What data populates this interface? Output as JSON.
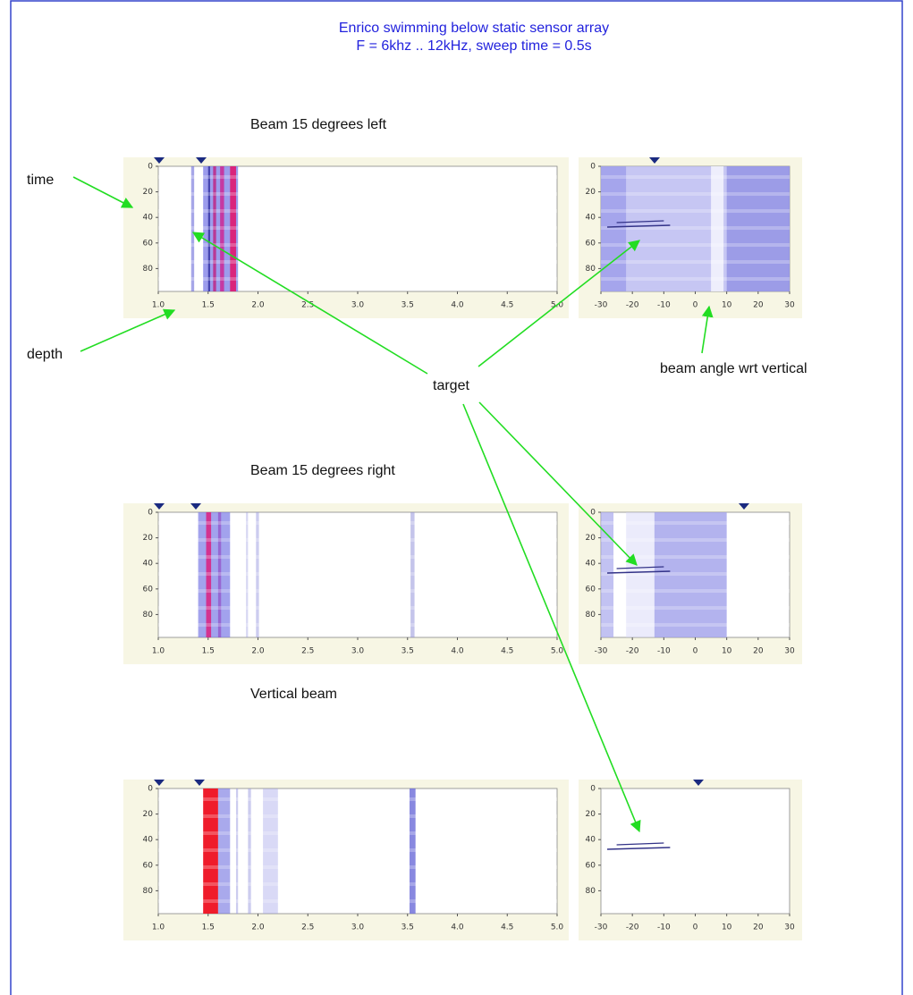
{
  "header": {
    "title": "Enrico swimming below static sensor array",
    "subtitle": "F = 6khz .. 12kHz, sweep time = 0.5s"
  },
  "sections": [
    {
      "heading": "Beam 15 degrees left"
    },
    {
      "heading": "Beam 15 degrees right"
    },
    {
      "heading": "Vertical beam"
    }
  ],
  "axes": {
    "time_ticks": [
      "0",
      "20",
      "40",
      "60",
      "80"
    ],
    "depth_ticks": [
      "1.0",
      "1.5",
      "2.0",
      "2.5",
      "3.0",
      "3.5",
      "4.0",
      "4.5",
      "5.0"
    ],
    "angle_ticks": [
      "-30",
      "-20",
      "-10",
      "0",
      "10",
      "20",
      "30"
    ]
  },
  "annotations": {
    "time": "time",
    "depth": "depth",
    "target": "target",
    "beam_angle": "beam angle wrt vertical"
  }
}
